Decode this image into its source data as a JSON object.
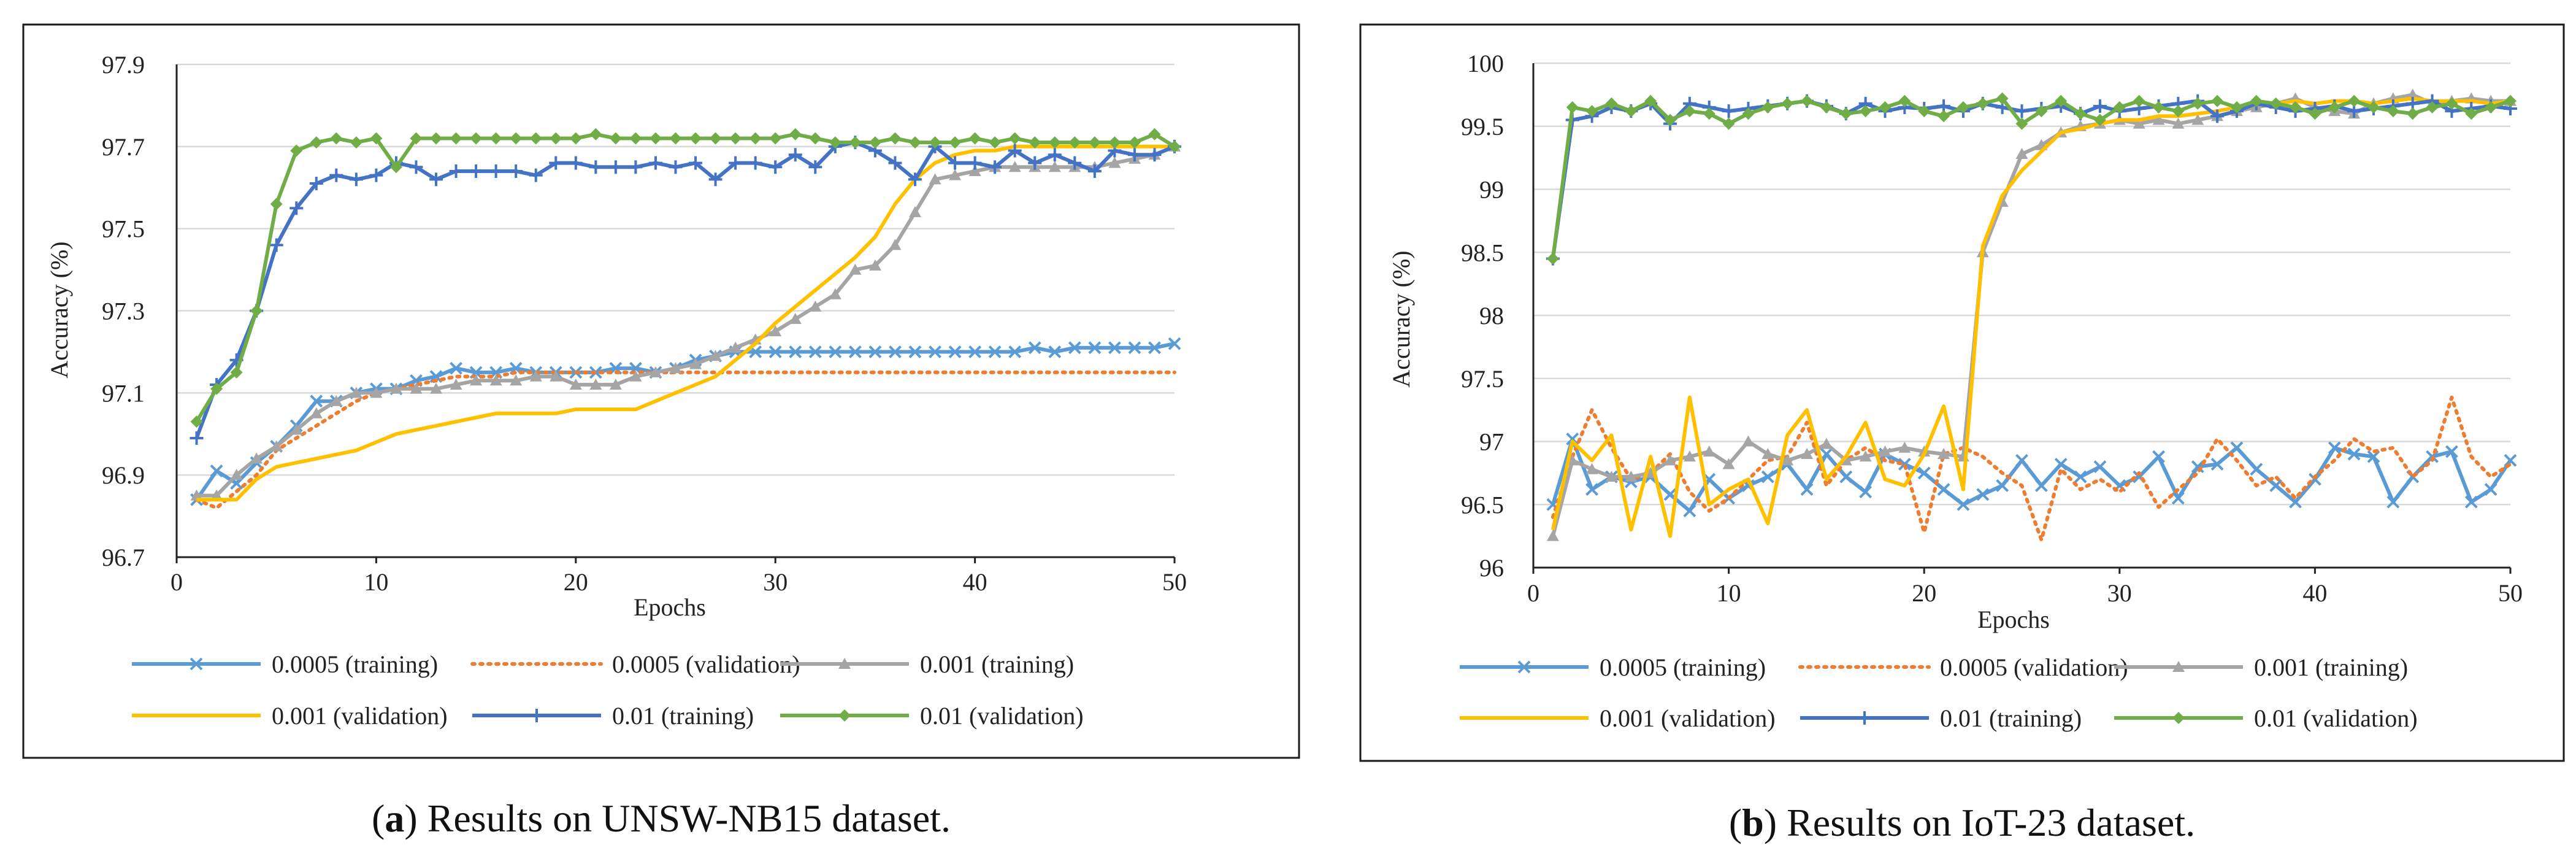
{
  "series_styles": [
    {
      "name": "0.0005 (training)",
      "color": "#5B9BD5",
      "dash": "",
      "marker": "x"
    },
    {
      "name": "0.0005 (validation)",
      "color": "#ED7D31",
      "dash": "dot",
      "marker": "none"
    },
    {
      "name": "0.001 (training)",
      "color": "#A5A5A5",
      "dash": "",
      "marker": "triangle"
    },
    {
      "name": "0.001 (validation)",
      "color": "#FFC000",
      "dash": "",
      "marker": "none"
    },
    {
      "name": "0.01 (training)",
      "color": "#4472C4",
      "dash": "",
      "marker": "plus"
    },
    {
      "name": "0.01 (validation)",
      "color": "#70AD47",
      "dash": "",
      "marker": "diamond"
    }
  ],
  "chart_data": [
    {
      "type": "line",
      "panel_label": "a",
      "caption": "Results on UNSW-NB15 dataset.",
      "xlabel": "Epochs",
      "ylabel": "Accuracy (%)",
      "xlim": [
        0,
        50
      ],
      "ylim": [
        96.7,
        97.9
      ],
      "xticks": [
        0,
        10,
        20,
        30,
        40,
        50
      ],
      "yticks": [
        96.7,
        96.9,
        97.1,
        97.3,
        97.5,
        97.7,
        97.9
      ],
      "ytick_labels": [
        "96.7",
        "96.9",
        "97.1",
        "97.3",
        "97.5",
        "97.7",
        "97.9"
      ],
      "grid": "horizontal",
      "legend_position": "bottom",
      "x": [
        1,
        2,
        3,
        4,
        5,
        6,
        7,
        8,
        9,
        10,
        11,
        12,
        13,
        14,
        15,
        16,
        17,
        18,
        19,
        20,
        21,
        22,
        23,
        24,
        25,
        26,
        27,
        28,
        29,
        30,
        31,
        32,
        33,
        34,
        35,
        36,
        37,
        38,
        39,
        40,
        41,
        42,
        43,
        44,
        45,
        46,
        47,
        48,
        49,
        50
      ],
      "series": [
        {
          "name": "0.0005 (training)",
          "values": [
            96.84,
            96.91,
            96.88,
            96.93,
            96.97,
            97.02,
            97.08,
            97.08,
            97.1,
            97.11,
            97.11,
            97.13,
            97.14,
            97.16,
            97.15,
            97.15,
            97.16,
            97.15,
            97.15,
            97.15,
            97.15,
            97.16,
            97.16,
            97.15,
            97.16,
            97.18,
            97.19,
            97.2,
            97.2,
            97.2,
            97.2,
            97.2,
            97.2,
            97.2,
            97.2,
            97.2,
            97.2,
            97.2,
            97.2,
            97.2,
            97.2,
            97.2,
            97.21,
            97.2,
            97.21,
            97.21,
            97.21,
            97.21,
            97.21,
            97.22
          ]
        },
        {
          "name": "0.0005 (validation)",
          "values": [
            96.84,
            96.82,
            96.86,
            96.9,
            96.96,
            96.99,
            97.02,
            97.05,
            97.08,
            97.1,
            97.11,
            97.12,
            97.13,
            97.14,
            97.14,
            97.14,
            97.15,
            97.15,
            97.15,
            97.15,
            97.15,
            97.15,
            97.15,
            97.15,
            97.15,
            97.15,
            97.15,
            97.15,
            97.15,
            97.15,
            97.15,
            97.15,
            97.15,
            97.15,
            97.15,
            97.15,
            97.15,
            97.15,
            97.15,
            97.15,
            97.15,
            97.15,
            97.15,
            97.15,
            97.15,
            97.15,
            97.15,
            97.15,
            97.15,
            97.15
          ]
        },
        {
          "name": "0.001 (training)",
          "values": [
            96.85,
            96.85,
            96.9,
            96.94,
            96.97,
            97.01,
            97.05,
            97.08,
            97.1,
            97.1,
            97.11,
            97.11,
            97.11,
            97.12,
            97.13,
            97.13,
            97.13,
            97.14,
            97.14,
            97.12,
            97.12,
            97.12,
            97.14,
            97.15,
            97.16,
            97.17,
            97.19,
            97.21,
            97.23,
            97.25,
            97.28,
            97.31,
            97.34,
            97.4,
            97.41,
            97.46,
            97.54,
            97.62,
            97.63,
            97.64,
            97.65,
            97.65,
            97.65,
            97.65,
            97.65,
            97.65,
            97.66,
            97.67,
            97.68,
            97.7
          ]
        },
        {
          "name": "0.001 (validation)",
          "values": [
            96.84,
            96.84,
            96.84,
            96.89,
            96.92,
            96.93,
            96.94,
            96.95,
            96.96,
            96.98,
            97.0,
            97.01,
            97.02,
            97.03,
            97.04,
            97.05,
            97.05,
            97.05,
            97.05,
            97.06,
            97.06,
            97.06,
            97.06,
            97.08,
            97.1,
            97.12,
            97.14,
            97.18,
            97.22,
            97.27,
            97.31,
            97.35,
            97.39,
            97.43,
            97.48,
            97.56,
            97.62,
            97.66,
            97.68,
            97.69,
            97.69,
            97.7,
            97.7,
            97.7,
            97.7,
            97.7,
            97.7,
            97.7,
            97.7,
            97.7
          ]
        },
        {
          "name": "0.01 (training)",
          "values": [
            96.99,
            97.12,
            97.18,
            97.3,
            97.46,
            97.55,
            97.61,
            97.63,
            97.62,
            97.63,
            97.66,
            97.65,
            97.62,
            97.64,
            97.64,
            97.64,
            97.64,
            97.63,
            97.66,
            97.66,
            97.65,
            97.65,
            97.65,
            97.66,
            97.65,
            97.66,
            97.62,
            97.66,
            97.66,
            97.65,
            97.68,
            97.65,
            97.7,
            97.71,
            97.69,
            97.66,
            97.62,
            97.7,
            97.66,
            97.66,
            97.65,
            97.69,
            97.66,
            97.68,
            97.66,
            97.64,
            97.69,
            97.68,
            97.68,
            97.7
          ]
        },
        {
          "name": "0.01 (validation)",
          "values": [
            97.03,
            97.11,
            97.15,
            97.3,
            97.56,
            97.69,
            97.71,
            97.72,
            97.71,
            97.72,
            97.65,
            97.72,
            97.72,
            97.72,
            97.72,
            97.72,
            97.72,
            97.72,
            97.72,
            97.72,
            97.73,
            97.72,
            97.72,
            97.72,
            97.72,
            97.72,
            97.72,
            97.72,
            97.72,
            97.72,
            97.73,
            97.72,
            97.71,
            97.71,
            97.71,
            97.72,
            97.71,
            97.71,
            97.71,
            97.72,
            97.71,
            97.72,
            97.71,
            97.71,
            97.71,
            97.71,
            97.71,
            97.71,
            97.73,
            97.7
          ]
        }
      ]
    },
    {
      "type": "line",
      "panel_label": "b",
      "caption": "Results on IoT-23 dataset.",
      "xlabel": "Epochs",
      "ylabel": "Accuracy (%)",
      "xlim": [
        0,
        50
      ],
      "ylim": [
        96,
        100
      ],
      "xticks": [
        0,
        10,
        20,
        30,
        40,
        50
      ],
      "yticks": [
        96,
        96.5,
        97,
        97.5,
        98,
        98.5,
        99,
        99.5,
        100
      ],
      "ytick_labels": [
        "96",
        "96.5",
        "97",
        "97.5",
        "98",
        "98.5",
        "99",
        "99.5",
        "100"
      ],
      "grid": "horizontal",
      "legend_position": "bottom",
      "x": [
        1,
        2,
        3,
        4,
        5,
        6,
        7,
        8,
        9,
        10,
        11,
        12,
        13,
        14,
        15,
        16,
        17,
        18,
        19,
        20,
        21,
        22,
        23,
        24,
        25,
        26,
        27,
        28,
        29,
        30,
        31,
        32,
        33,
        34,
        35,
        36,
        37,
        38,
        39,
        40,
        41,
        42,
        43,
        44,
        45,
        46,
        47,
        48,
        49,
        50
      ],
      "series": [
        {
          "name": "0.0005 (training)",
          "values": [
            96.5,
            97.02,
            96.62,
            96.72,
            96.68,
            96.72,
            96.58,
            96.45,
            96.7,
            96.55,
            96.65,
            96.72,
            96.82,
            96.62,
            96.9,
            96.72,
            96.6,
            96.9,
            96.82,
            96.75,
            96.62,
            96.5,
            96.58,
            96.65,
            96.85,
            96.65,
            96.82,
            96.72,
            96.8,
            96.65,
            96.72,
            96.88,
            96.55,
            96.8,
            96.82,
            96.95,
            96.78,
            96.65,
            96.52,
            96.7,
            96.95,
            96.9,
            96.88,
            96.52,
            96.72,
            96.88,
            96.92,
            96.52,
            96.62,
            96.85
          ]
        },
        {
          "name": "0.0005 (validation)",
          "values": [
            96.4,
            96.88,
            97.25,
            96.95,
            96.7,
            96.75,
            96.9,
            96.6,
            96.45,
            96.55,
            96.7,
            96.85,
            96.88,
            97.15,
            96.65,
            96.85,
            96.95,
            96.85,
            96.82,
            96.28,
            96.9,
            96.95,
            96.88,
            96.75,
            96.65,
            96.22,
            96.78,
            96.62,
            96.7,
            96.6,
            96.75,
            96.48,
            96.62,
            96.75,
            97.02,
            96.85,
            96.65,
            96.72,
            96.55,
            96.72,
            96.85,
            97.02,
            96.92,
            96.95,
            96.72,
            96.85,
            97.35,
            96.88,
            96.72,
            96.82
          ]
        },
        {
          "name": "0.001 (training)",
          "values": [
            96.25,
            96.85,
            96.78,
            96.72,
            96.72,
            96.75,
            96.85,
            96.88,
            96.92,
            96.82,
            97.0,
            96.9,
            96.85,
            96.9,
            96.98,
            96.85,
            96.88,
            96.92,
            96.95,
            96.92,
            96.9,
            96.88,
            98.5,
            98.9,
            99.28,
            99.35,
            99.45,
            99.5,
            99.52,
            99.55,
            99.52,
            99.55,
            99.52,
            99.55,
            99.58,
            99.62,
            99.65,
            99.68,
            99.72,
            99.65,
            99.62,
            99.6,
            99.68,
            99.72,
            99.75,
            99.68,
            99.7,
            99.72,
            99.7,
            99.7
          ]
        },
        {
          "name": "0.001 (validation)",
          "values": [
            96.3,
            97.0,
            96.85,
            97.05,
            96.3,
            96.88,
            96.25,
            97.35,
            96.5,
            96.62,
            96.7,
            96.35,
            97.05,
            97.25,
            96.7,
            96.88,
            97.15,
            96.7,
            96.65,
            96.9,
            97.28,
            96.62,
            98.55,
            98.95,
            99.15,
            99.3,
            99.45,
            99.48,
            99.52,
            99.55,
            99.55,
            99.58,
            99.58,
            99.6,
            99.62,
            99.65,
            99.68,
            99.68,
            99.7,
            99.68,
            99.7,
            99.7,
            99.68,
            99.7,
            99.72,
            99.7,
            99.7,
            99.7,
            99.68,
            99.7
          ]
        },
        {
          "name": "0.01 (training)",
          "values": [
            98.45,
            99.55,
            99.58,
            99.65,
            99.62,
            99.68,
            99.52,
            99.68,
            99.65,
            99.62,
            99.64,
            99.66,
            99.68,
            99.7,
            99.66,
            99.6,
            99.68,
            99.62,
            99.65,
            99.64,
            99.66,
            99.62,
            99.68,
            99.65,
            99.62,
            99.64,
            99.66,
            99.6,
            99.66,
            99.62,
            99.64,
            99.66,
            99.68,
            99.7,
            99.58,
            99.62,
            99.68,
            99.65,
            99.62,
            99.64,
            99.66,
            99.62,
            99.64,
            99.66,
            99.68,
            99.7,
            99.62,
            99.64,
            99.66,
            99.64
          ]
        },
        {
          "name": "0.01 (validation)",
          "values": [
            98.45,
            99.65,
            99.62,
            99.68,
            99.62,
            99.7,
            99.55,
            99.62,
            99.6,
            99.52,
            99.6,
            99.65,
            99.68,
            99.7,
            99.65,
            99.6,
            99.62,
            99.65,
            99.7,
            99.62,
            99.58,
            99.65,
            99.68,
            99.72,
            99.52,
            99.62,
            99.7,
            99.6,
            99.55,
            99.65,
            99.7,
            99.65,
            99.62,
            99.68,
            99.7,
            99.65,
            99.7,
            99.68,
            99.65,
            99.6,
            99.65,
            99.7,
            99.65,
            99.62,
            99.6,
            99.65,
            99.68,
            99.6,
            99.65,
            99.7
          ]
        }
      ]
    }
  ]
}
